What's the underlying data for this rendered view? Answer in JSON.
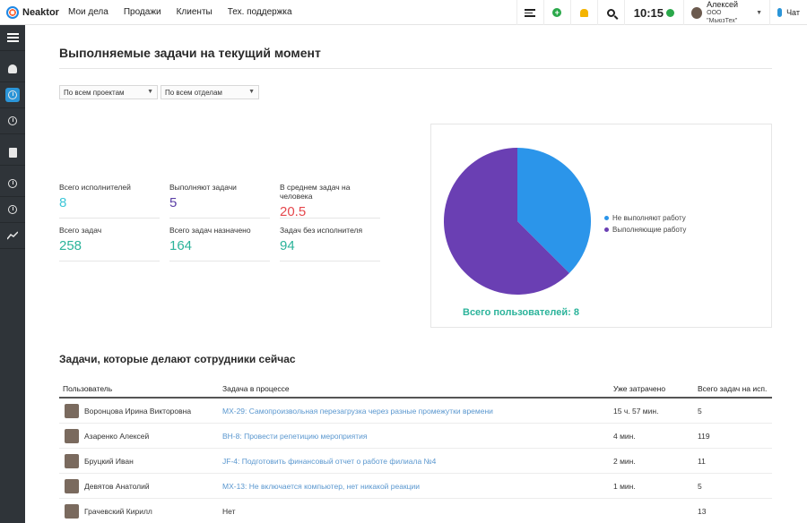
{
  "app": {
    "brand": "Neaktor"
  },
  "nav": [
    "Мои дела",
    "Продажи",
    "Клиенты",
    "Тех. поддержка"
  ],
  "header": {
    "clock": "10:15",
    "user_name": "Алексей",
    "user_org": "ООО \"МьюзТех\"",
    "chat_label": "Чат"
  },
  "page": {
    "title": "Выполняемые задачи на текущий момент"
  },
  "filters": {
    "projects": "По всем проектам",
    "departments": "По всем отделам"
  },
  "stats": [
    {
      "label": "Всего исполнителей",
      "value": "8",
      "color": "#3ec7d8"
    },
    {
      "label": "Выполняют задачи",
      "value": "5",
      "color": "#5b3fa6"
    },
    {
      "label": "В среднем задач на человека",
      "value": "20.5",
      "color": "#e5484d"
    },
    {
      "label": "Всего задач",
      "value": "258",
      "color": "#2bb39a"
    },
    {
      "label": "Всего задач назначено",
      "value": "164",
      "color": "#2bb39a"
    },
    {
      "label": "Задач без исполнителя",
      "value": "94",
      "color": "#2bb39a"
    }
  ],
  "chart_data": {
    "type": "pie",
    "series": [
      {
        "name": "Не выполняют работу",
        "value": 3,
        "color": "#2b95ea"
      },
      {
        "name": "Выполняющие работу",
        "value": 5,
        "color": "#6a3fb3"
      }
    ],
    "legend_position": "right",
    "caption": "Всего пользователей: 8"
  },
  "section": {
    "title": "Задачи, которые делают сотрудники сейчас"
  },
  "table": {
    "columns": [
      "Пользователь",
      "Задача в процессе",
      "Уже затрачено",
      "Всего задач на исп."
    ],
    "rows": [
      {
        "user": "Воронцова Ирина Викторовна",
        "task": "MX-29: Самопроизвольная перезагрузка через разные промежутки времени",
        "spent": "15 ч. 57 мин.",
        "total": "5"
      },
      {
        "user": "Азаренко Алексей",
        "task": "BH-8: Провести репетицию мероприятия",
        "spent": "4 мин.",
        "total": "119"
      },
      {
        "user": "Бруцкий Иван",
        "task": "JF-4: Подготовить финансовый отчет о работе филиала №4",
        "spent": "2 мин.",
        "total": "11"
      },
      {
        "user": "Девятов Анатолий",
        "task": "MX-13: Не включается компьютер, нет никакой реакции",
        "spent": "1 мин.",
        "total": "5"
      },
      {
        "user": "Грачевский Кирилл",
        "task": "Нет",
        "spent": "",
        "total": "13"
      }
    ]
  }
}
